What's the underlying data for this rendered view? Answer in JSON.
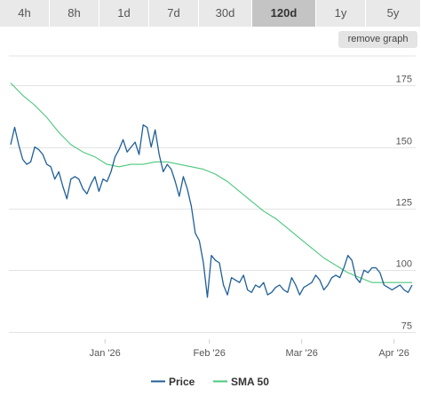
{
  "tabs": [
    {
      "label": "4h"
    },
    {
      "label": "8h"
    },
    {
      "label": "1d"
    },
    {
      "label": "7d"
    },
    {
      "label": "30d"
    },
    {
      "label": "120d",
      "active": true
    },
    {
      "label": "1y"
    },
    {
      "label": "5y"
    }
  ],
  "remove_graph_label": "remove graph",
  "colors": {
    "price": "#1f5f97",
    "sma": "#4cc77c",
    "grid": "#e3e3e3",
    "text": "#555555"
  },
  "chart_data": {
    "type": "line",
    "title": "",
    "xlabel": "",
    "ylabel": "",
    "ylim": [
      72,
      187
    ],
    "yticks": [
      75,
      100,
      125,
      150,
      175
    ],
    "xlim": [
      0,
      100
    ],
    "xticks": [
      {
        "x": 23.5,
        "label": "Jan '26"
      },
      {
        "x": 49.5,
        "label": "Feb '26"
      },
      {
        "x": 72.5,
        "label": "Mar '26"
      },
      {
        "x": 95.5,
        "label": "Apr '26"
      }
    ],
    "grid": true,
    "legend": "bottom-center",
    "series": [
      {
        "name": "Price",
        "color": "#1f5f97",
        "x": [
          0,
          1,
          2,
          3,
          4,
          5,
          6,
          7,
          8,
          9,
          10,
          11,
          12,
          13,
          14,
          15,
          16,
          17,
          18,
          19,
          20,
          21,
          22,
          23,
          24,
          25,
          26,
          27,
          28,
          29,
          30,
          31,
          32,
          33,
          34,
          35,
          36,
          37,
          38,
          39,
          40,
          41,
          42,
          43,
          44,
          45,
          46,
          47,
          48,
          49,
          50,
          51,
          52,
          53,
          54,
          55,
          56,
          57,
          58,
          59,
          60,
          61,
          62,
          63,
          64,
          65,
          66,
          67,
          68,
          69,
          70,
          71,
          72,
          73,
          74,
          75,
          76,
          77,
          78,
          79,
          80,
          81,
          82,
          83,
          84,
          85,
          86,
          87,
          88,
          89,
          90,
          91,
          92,
          93,
          94,
          95,
          96,
          97,
          98,
          99,
          100
        ],
        "values": [
          151,
          158,
          151,
          145,
          143,
          144,
          150,
          149,
          147,
          143,
          142,
          137,
          140,
          134,
          129,
          137,
          138,
          137,
          133,
          131,
          135,
          138,
          132,
          137,
          136,
          140,
          146,
          149,
          153,
          148,
          150,
          152,
          147,
          159,
          158,
          150,
          157,
          147,
          140,
          143,
          141,
          136,
          130,
          138,
          133,
          126,
          115,
          112,
          103,
          89,
          106,
          104,
          103,
          94,
          90,
          97,
          96,
          95,
          98,
          92,
          91,
          94,
          93,
          95,
          90,
          91,
          93,
          94,
          92,
          91,
          97,
          94,
          90,
          93,
          94,
          95,
          98,
          96,
          92,
          94,
          97,
          98,
          97,
          101,
          106,
          104,
          97,
          95,
          100,
          99,
          101,
          101,
          99,
          94,
          93,
          92,
          93,
          94,
          92,
          91,
          94
        ]
      },
      {
        "name": "SMA 50",
        "color": "#4cc77c",
        "x": [
          0,
          3,
          6,
          9,
          12,
          15,
          18,
          21,
          24,
          27,
          30,
          33,
          36,
          39,
          42,
          45,
          48,
          51,
          54,
          57,
          60,
          63,
          66,
          69,
          72,
          75,
          78,
          81,
          84,
          87,
          90,
          93,
          96,
          100
        ],
        "values": [
          176,
          171,
          167,
          162,
          156,
          151,
          148,
          146,
          143,
          142,
          143,
          143,
          144,
          144,
          143,
          142,
          141,
          139,
          136,
          132,
          128,
          124,
          121,
          117,
          113,
          109,
          105,
          102,
          99,
          97,
          95,
          95,
          95,
          95
        ]
      }
    ]
  }
}
